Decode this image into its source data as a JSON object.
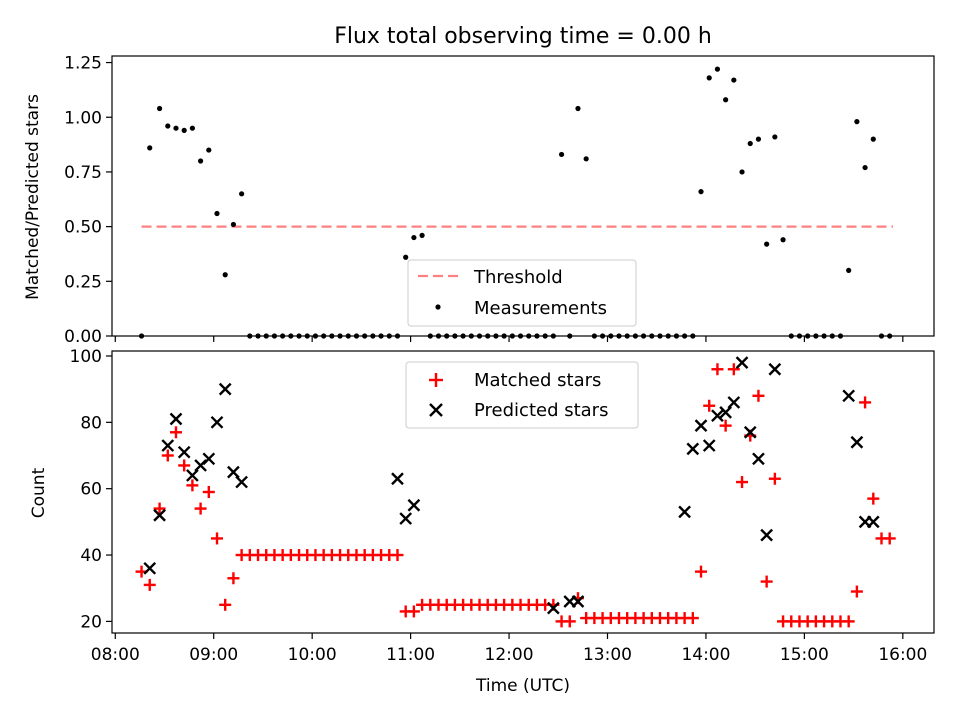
{
  "chart_data": [
    {
      "type": "scatter",
      "title": "Flux total observing time = 0.00 h",
      "xlabel": "",
      "ylabel": "Matched/Predicted stars",
      "xlim": [
        "07:58",
        "16:19"
      ],
      "ylim": [
        0,
        1.28
      ],
      "yticks": [
        "0.00",
        "0.25",
        "0.50",
        "0.75",
        "1.00",
        "1.25"
      ],
      "ytick_values": [
        0,
        0.25,
        0.5,
        0.75,
        1.0,
        1.25
      ],
      "xticks": [
        "08:00",
        "09:00",
        "10:00",
        "11:00",
        "12:00",
        "13:00",
        "14:00",
        "15:00",
        "16:00"
      ],
      "legend": {
        "placement": "bottom-center",
        "entries": [
          "Threshold",
          "Measurements"
        ]
      },
      "threshold": {
        "name": "Threshold",
        "value": 0.5,
        "x_range": [
          "08:16",
          "15:54"
        ],
        "color": "#ff8080",
        "style": "dashed"
      },
      "series": [
        {
          "name": "Measurements",
          "color": "#000000",
          "marker": "dot",
          "x": [
            "08:16",
            "08:21",
            "08:27",
            "08:32",
            "08:37",
            "08:42",
            "08:47",
            "08:52",
            "08:57",
            "09:02",
            "09:07",
            "09:12",
            "09:17",
            "09:22",
            "09:27",
            "09:32",
            "09:37",
            "09:42",
            "09:47",
            "09:52",
            "09:57",
            "10:02",
            "10:07",
            "10:12",
            "10:17",
            "10:22",
            "10:27",
            "10:32",
            "10:37",
            "10:42",
            "10:47",
            "10:52",
            "10:57",
            "11:02",
            "11:07",
            "11:12",
            "11:17",
            "11:22",
            "11:27",
            "11:32",
            "11:37",
            "11:42",
            "11:47",
            "11:52",
            "11:57",
            "12:02",
            "12:07",
            "12:12",
            "12:17",
            "12:22",
            "12:27",
            "12:32",
            "12:37",
            "12:42",
            "12:47",
            "12:52",
            "12:57",
            "13:02",
            "13:07",
            "13:12",
            "13:17",
            "13:22",
            "13:27",
            "13:32",
            "13:37",
            "13:42",
            "13:47",
            "13:52",
            "13:57",
            "14:02",
            "14:07",
            "14:12",
            "14:17",
            "14:22",
            "14:27",
            "14:32",
            "14:37",
            "14:42",
            "14:47",
            "14:52",
            "14:57",
            "15:02",
            "15:07",
            "15:12",
            "15:17",
            "15:22",
            "15:27",
            "15:32",
            "15:37",
            "15:42",
            "15:47",
            "15:52"
          ],
          "y": [
            0.0,
            0.86,
            1.04,
            0.96,
            0.95,
            0.94,
            0.95,
            0.8,
            0.85,
            0.56,
            0.28,
            0.51,
            0.65,
            0.0,
            0.0,
            0.0,
            0.0,
            0.0,
            0.0,
            0.0,
            0.0,
            0.0,
            0.0,
            0.0,
            0.0,
            0.0,
            0.0,
            0.0,
            0.0,
            0.0,
            0.0,
            0.0,
            0.36,
            0.45,
            0.46,
            0.0,
            0.0,
            0.0,
            0.0,
            0.0,
            0.0,
            0.0,
            0.0,
            0.0,
            0.0,
            0.0,
            0.0,
            0.0,
            0.0,
            0.0,
            0.0,
            0.83,
            0.0,
            1.04,
            0.81,
            0.0,
            0.0,
            0.0,
            0.0,
            0.0,
            0.0,
            0.0,
            0.0,
            0.0,
            0.0,
            0.0,
            0.0,
            0.0,
            0.66,
            1.18,
            1.22,
            1.08,
            1.17,
            0.75,
            0.88,
            0.9,
            0.42,
            0.91,
            0.44,
            0.0,
            0.0,
            0.0,
            0.0,
            0.0,
            0.0,
            0.0,
            0.3,
            0.98,
            0.77,
            0.9,
            0.0,
            0.0
          ]
        }
      ]
    },
    {
      "type": "scatter",
      "title": "",
      "xlabel": "Time (UTC)",
      "ylabel": "Count",
      "xlim": [
        "07:58",
        "16:19"
      ],
      "ylim": [
        16.5,
        101.5
      ],
      "yticks": [
        "20",
        "40",
        "60",
        "80",
        "100"
      ],
      "ytick_values": [
        20,
        40,
        60,
        80,
        100
      ],
      "xticks": [
        "08:00",
        "09:00",
        "10:00",
        "11:00",
        "12:00",
        "13:00",
        "14:00",
        "15:00",
        "16:00"
      ],
      "legend": {
        "placement": "top-center",
        "entries": [
          "Matched stars",
          "Predicted stars"
        ]
      },
      "series": [
        {
          "name": "Matched stars",
          "color": "#ff0000",
          "marker": "plus",
          "x": [
            "08:16",
            "08:21",
            "08:27",
            "08:32",
            "08:37",
            "08:42",
            "08:47",
            "08:52",
            "08:57",
            "09:02",
            "09:07",
            "09:12",
            "09:17",
            "09:22",
            "09:27",
            "09:32",
            "09:37",
            "09:42",
            "09:47",
            "09:52",
            "09:57",
            "10:02",
            "10:07",
            "10:12",
            "10:17",
            "10:22",
            "10:27",
            "10:32",
            "10:37",
            "10:42",
            "10:47",
            "10:52",
            "10:57",
            "11:02",
            "11:07",
            "11:12",
            "11:17",
            "11:22",
            "11:27",
            "11:32",
            "11:37",
            "11:42",
            "11:47",
            "11:52",
            "11:57",
            "12:02",
            "12:07",
            "12:12",
            "12:17",
            "12:22",
            "12:27",
            "12:32",
            "12:37",
            "12:42",
            "12:47",
            "12:52",
            "12:57",
            "13:02",
            "13:07",
            "13:12",
            "13:17",
            "13:22",
            "13:27",
            "13:32",
            "13:37",
            "13:42",
            "13:47",
            "13:52",
            "13:57",
            "14:02",
            "14:07",
            "14:12",
            "14:17",
            "14:22",
            "14:27",
            "14:32",
            "14:37",
            "14:42",
            "14:47",
            "14:52",
            "14:57",
            "15:02",
            "15:07",
            "15:12",
            "15:17",
            "15:22",
            "15:27",
            "15:32",
            "15:37",
            "15:42",
            "15:47",
            "15:52"
          ],
          "y": [
            35,
            31,
            54,
            70,
            77,
            67,
            61,
            54,
            59,
            45,
            25,
            33,
            40,
            40,
            40,
            40,
            40,
            40,
            40,
            40,
            40,
            40,
            40,
            40,
            40,
            40,
            40,
            40,
            40,
            40,
            40,
            40,
            23,
            23,
            25,
            25,
            25,
            25,
            25,
            25,
            25,
            25,
            25,
            25,
            25,
            25,
            25,
            25,
            25,
            25,
            25,
            20,
            20,
            27,
            21,
            21,
            21,
            21,
            21,
            21,
            21,
            21,
            21,
            21,
            21,
            21,
            21,
            21,
            35,
            85,
            96,
            79,
            96,
            62,
            76,
            88,
            32,
            63,
            20,
            20,
            20,
            20,
            20,
            20,
            20,
            20,
            20,
            29,
            86,
            57,
            45,
            45
          ]
        },
        {
          "name": "Predicted stars",
          "color": "#000000",
          "marker": "x",
          "x": [
            "08:21",
            "08:27",
            "08:32",
            "08:37",
            "08:42",
            "08:47",
            "08:52",
            "08:57",
            "09:02",
            "09:07",
            "09:12",
            "09:17",
            "10:52",
            "10:57",
            "11:02",
            "12:27",
            "12:37",
            "12:42",
            "13:47",
            "13:52",
            "13:57",
            "14:02",
            "14:07",
            "14:12",
            "14:17",
            "14:22",
            "14:27",
            "14:32",
            "14:37",
            "14:42",
            "15:27",
            "15:32",
            "15:37",
            "15:42"
          ],
          "y": [
            36,
            52,
            73,
            81,
            71,
            64,
            67,
            69,
            80,
            90,
            65,
            62,
            63,
            51,
            55,
            24,
            26,
            26,
            53,
            72,
            79,
            73,
            82,
            83,
            86,
            98,
            77,
            69,
            46,
            96,
            88,
            74,
            50,
            50
          ]
        }
      ]
    }
  ]
}
